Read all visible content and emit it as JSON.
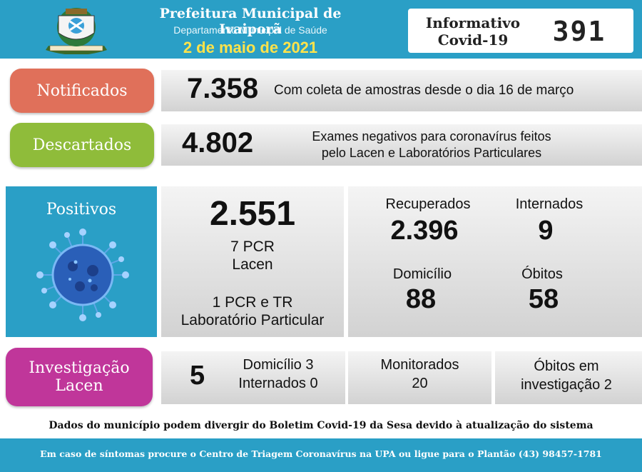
{
  "header": {
    "title": "Prefeitura Municipal de Ivaiporã",
    "subtitle": "Departamento Municipal de Saúde",
    "date": "2 de maio de 2021",
    "info_label_line1": "Informativo",
    "info_label_line2": "Covid-19",
    "edition": "391"
  },
  "notificados": {
    "label": "Notificados",
    "value": "7.358",
    "description": "Com coleta de amostras desde o dia 16 de março"
  },
  "descartados": {
    "label": "Descartados",
    "value": "4.802",
    "description_line1": "Exames negativos para coronavírus feitos",
    "description_line2": "pelo Lacen e Laboratórios Particulares"
  },
  "positivos": {
    "label": "Positivos",
    "value": "2.551",
    "pcr_line1": "7 PCR",
    "pcr_line2": "Lacen",
    "particular_line1": "1 PCR e TR",
    "particular_line2": "Laboratório Particular",
    "recuperados_label": "Recuperados",
    "recuperados_value": "2.396",
    "internados_label": "Internados",
    "internados_value": "9",
    "domicilio_label": "Domicílio",
    "domicilio_value": "88",
    "obitos_label": "Óbitos",
    "obitos_value": "58"
  },
  "investigacao": {
    "label_line1": "Investigação",
    "label_line2": "Lacen",
    "value": "5",
    "domicilio": "Domicílio 3",
    "internados": "Internados 0",
    "monitorados_label": "Monitorados",
    "monitorados_value": "20",
    "obitos_line1": "Óbitos em",
    "obitos_line2": "investigação 2"
  },
  "footer": {
    "note": "Dados do município podem divergir do Boletim Covid-19 da Sesa devido à atualização do sistema",
    "contact": "Em caso de síntomas procure o Centro de Triagem Coronavírus na UPA ou ligue para o Plantão (43) 98457-1781"
  },
  "colors": {
    "header_blue": "#2a9fc6",
    "notificados": "#e0705a",
    "descartados": "#8fbc3a",
    "positivos": "#2a9fc6",
    "investigacao": "#c0369a",
    "date_yellow": "#ffe34a"
  }
}
